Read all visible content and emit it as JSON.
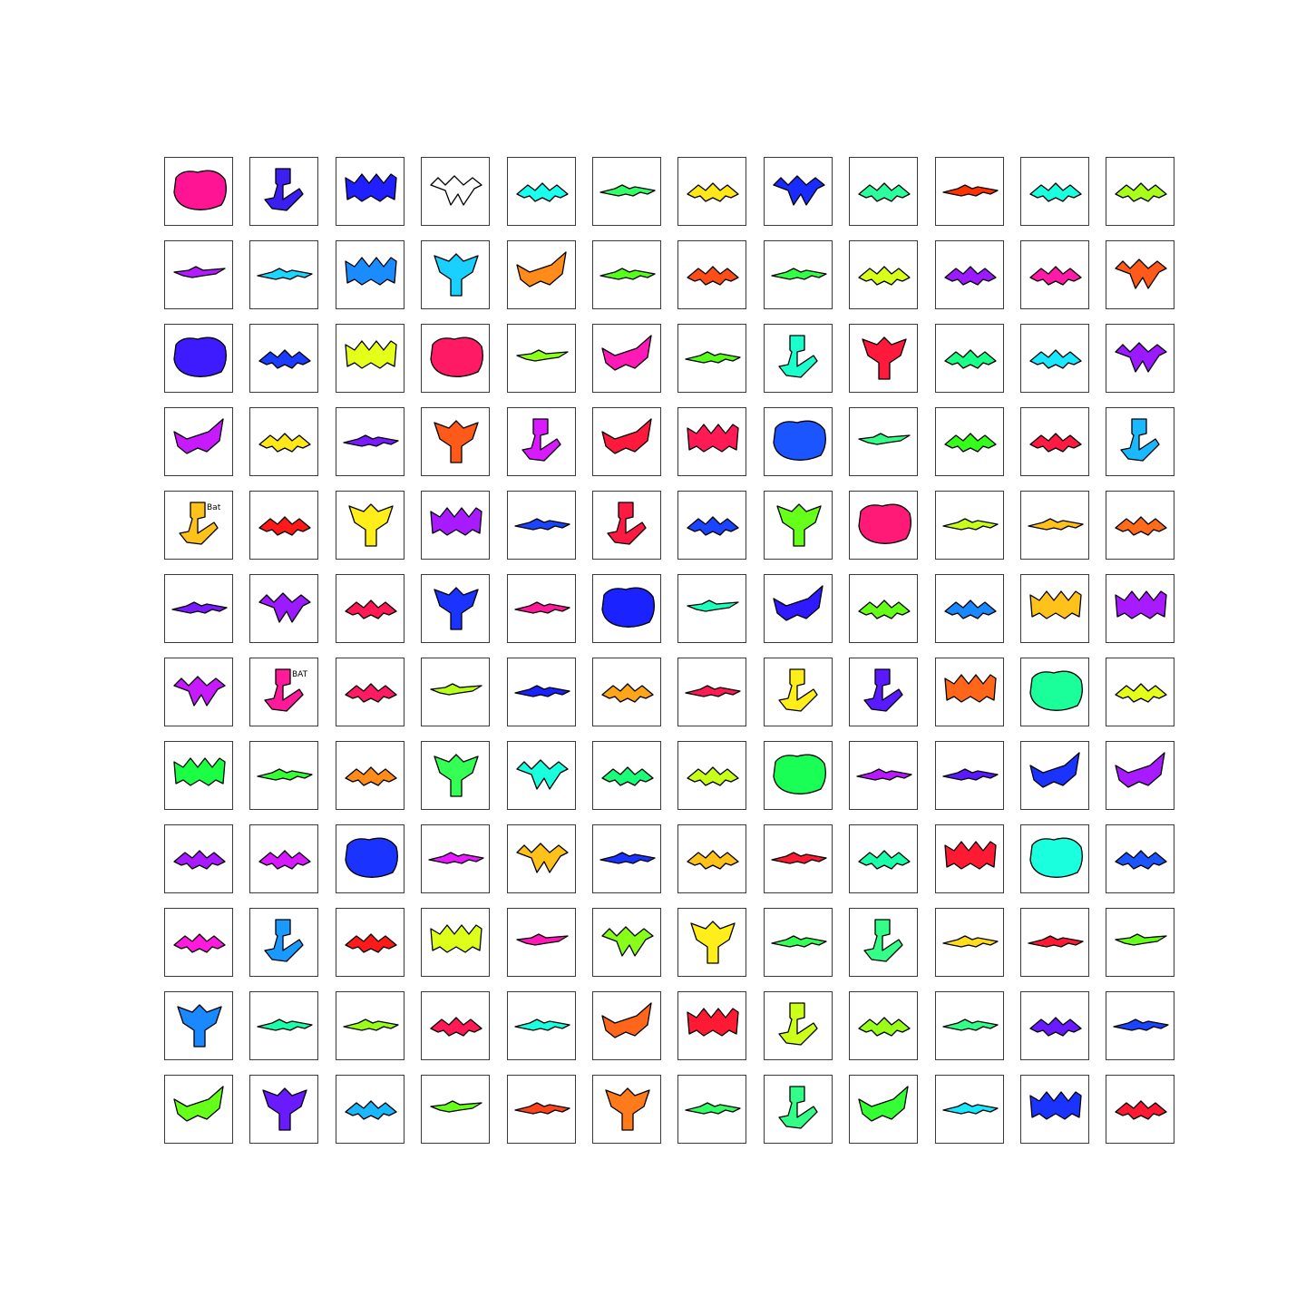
{
  "grid": {
    "rows": 12,
    "cols": 12,
    "cells": [
      {
        "color": "#ff1493",
        "shape": "blob"
      },
      {
        "color": "#3a1ff0",
        "shape": "figure"
      },
      {
        "color": "#1f1fff",
        "shape": "wide"
      },
      {
        "color": "#ffffff",
        "shape": "outline"
      },
      {
        "color": "#1affee",
        "shape": "spread"
      },
      {
        "color": "#33ff66",
        "shape": "long"
      },
      {
        "color": "#ffe81a",
        "shape": "spread"
      },
      {
        "color": "#1a2bff",
        "shape": "outline"
      },
      {
        "color": "#2bff9e",
        "shape": "spread"
      },
      {
        "color": "#ff3300",
        "shape": "long"
      },
      {
        "color": "#1affe0",
        "shape": "spread"
      },
      {
        "color": "#a8ff1a",
        "shape": "spread"
      },
      {
        "color": "#b31aff",
        "shape": "thin"
      },
      {
        "color": "#1ad8ff",
        "shape": "long"
      },
      {
        "color": "#1a8cff",
        "shape": "wide"
      },
      {
        "color": "#1ad0ff",
        "shape": "tall"
      },
      {
        "color": "#ff8c1a",
        "shape": "wing"
      },
      {
        "color": "#55ff1a",
        "shape": "long"
      },
      {
        "color": "#ff4d1a",
        "shape": "spread"
      },
      {
        "color": "#33ff44",
        "shape": "long"
      },
      {
        "color": "#d8ff1a",
        "shape": "spread"
      },
      {
        "color": "#9c1aff",
        "shape": "spread"
      },
      {
        "color": "#ff1aa8",
        "shape": "spread"
      },
      {
        "color": "#ff5a1a",
        "shape": "outline"
      },
      {
        "color": "#3d1aff",
        "shape": "blob"
      },
      {
        "color": "#1a3dff",
        "shape": "spread"
      },
      {
        "color": "#e6ff1a",
        "shape": "wide"
      },
      {
        "color": "#ff1a66",
        "shape": "blob"
      },
      {
        "color": "#8cff1a",
        "shape": "thin"
      },
      {
        "color": "#ff1ab8",
        "shape": "wing"
      },
      {
        "color": "#55ff1a",
        "shape": "long"
      },
      {
        "color": "#1affcc",
        "shape": "figure"
      },
      {
        "color": "#ff1a3d",
        "shape": "tall"
      },
      {
        "color": "#1aff88",
        "shape": "spread"
      },
      {
        "color": "#1ae8ff",
        "shape": "spread"
      },
      {
        "color": "#9c1aff",
        "shape": "outline"
      },
      {
        "color": "#c81aff",
        "shape": "wing"
      },
      {
        "color": "#ffe81a",
        "shape": "spread"
      },
      {
        "color": "#7a1aff",
        "shape": "long"
      },
      {
        "color": "#ff5a1a",
        "shape": "tall"
      },
      {
        "color": "#d81aff",
        "shape": "figure"
      },
      {
        "color": "#ff1a3d",
        "shape": "wing"
      },
      {
        "color": "#ff1a55",
        "shape": "wide"
      },
      {
        "color": "#1a55ff",
        "shape": "blob"
      },
      {
        "color": "#33ff88",
        "shape": "thin"
      },
      {
        "color": "#33ff1a",
        "shape": "spread"
      },
      {
        "color": "#ff1a44",
        "shape": "spread"
      },
      {
        "color": "#1ab8ff",
        "shape": "figure"
      },
      {
        "color": "#ffc21a",
        "shape": "figure"
      },
      {
        "color": "#ff1a1a",
        "shape": "spread"
      },
      {
        "color": "#ffee1a",
        "shape": "tall"
      },
      {
        "color": "#a81aff",
        "shape": "wide"
      },
      {
        "color": "#1a44ff",
        "shape": "long"
      },
      {
        "color": "#ff1a44",
        "shape": "figure"
      },
      {
        "color": "#1a44ff",
        "shape": "spread"
      },
      {
        "color": "#66ff1a",
        "shape": "tall"
      },
      {
        "color": "#ff1a77",
        "shape": "blob"
      },
      {
        "color": "#c8ff1a",
        "shape": "long"
      },
      {
        "color": "#ffc21a",
        "shape": "long"
      },
      {
        "color": "#ff6b1a",
        "shape": "spread"
      },
      {
        "color": "#7a1aff",
        "shape": "long"
      },
      {
        "color": "#9c1aff",
        "shape": "outline"
      },
      {
        "color": "#ff1a55",
        "shape": "spread"
      },
      {
        "color": "#1a33ff",
        "shape": "tall"
      },
      {
        "color": "#ff1a99",
        "shape": "long"
      },
      {
        "color": "#1a22ff",
        "shape": "blob"
      },
      {
        "color": "#1affbb",
        "shape": "thin"
      },
      {
        "color": "#2f1aff",
        "shape": "wing"
      },
      {
        "color": "#66ff1a",
        "shape": "spread"
      },
      {
        "color": "#1a88ff",
        "shape": "spread"
      },
      {
        "color": "#ffc21a",
        "shape": "wide"
      },
      {
        "color": "#a81aff",
        "shape": "wide"
      },
      {
        "color": "#c81aff",
        "shape": "outline"
      },
      {
        "color": "#ff1a99",
        "shape": "figure"
      },
      {
        "color": "#ff1a66",
        "shape": "spread"
      },
      {
        "color": "#b8ff1a",
        "shape": "thin"
      },
      {
        "color": "#1a22ff",
        "shape": "long"
      },
      {
        "color": "#ffa51a",
        "shape": "spread"
      },
      {
        "color": "#ff1a55",
        "shape": "long"
      },
      {
        "color": "#ffee1a",
        "shape": "figure"
      },
      {
        "color": "#5a1aff",
        "shape": "figure"
      },
      {
        "color": "#ff661a",
        "shape": "wide"
      },
      {
        "color": "#1aff99",
        "shape": "blob"
      },
      {
        "color": "#e6ff1a",
        "shape": "spread"
      },
      {
        "color": "#1aff44",
        "shape": "wide"
      },
      {
        "color": "#33ff33",
        "shape": "long"
      },
      {
        "color": "#ff8c1a",
        "shape": "spread"
      },
      {
        "color": "#33ff55",
        "shape": "tall"
      },
      {
        "color": "#1affdd",
        "shape": "outline"
      },
      {
        "color": "#1aff77",
        "shape": "spread"
      },
      {
        "color": "#c8ff1a",
        "shape": "spread"
      },
      {
        "color": "#1aff55",
        "shape": "blob"
      },
      {
        "color": "#b81aff",
        "shape": "long"
      },
      {
        "color": "#5a1aff",
        "shape": "long"
      },
      {
        "color": "#1a33ff",
        "shape": "wing"
      },
      {
        "color": "#a81aff",
        "shape": "wing"
      },
      {
        "color": "#a81aff",
        "shape": "spread"
      },
      {
        "color": "#d81aff",
        "shape": "spread"
      },
      {
        "color": "#1a33ff",
        "shape": "blob"
      },
      {
        "color": "#e81aff",
        "shape": "long"
      },
      {
        "color": "#ffc21a",
        "shape": "outline"
      },
      {
        "color": "#1a33ff",
        "shape": "long"
      },
      {
        "color": "#ffc21a",
        "shape": "spread"
      },
      {
        "color": "#ff1a33",
        "shape": "long"
      },
      {
        "color": "#1affaa",
        "shape": "spread"
      },
      {
        "color": "#ff1a33",
        "shape": "wide"
      },
      {
        "color": "#1affdd",
        "shape": "blob"
      },
      {
        "color": "#1a55ff",
        "shape": "spread"
      },
      {
        "color": "#ff1add",
        "shape": "spread"
      },
      {
        "color": "#1a99ff",
        "shape": "figure"
      },
      {
        "color": "#ff1a1a",
        "shape": "spread"
      },
      {
        "color": "#ddff1a",
        "shape": "wide"
      },
      {
        "color": "#ff1ab8",
        "shape": "thin"
      },
      {
        "color": "#88ff1a",
        "shape": "outline"
      },
      {
        "color": "#ffee1a",
        "shape": "tall"
      },
      {
        "color": "#33ff55",
        "shape": "long"
      },
      {
        "color": "#33ff88",
        "shape": "figure"
      },
      {
        "color": "#ffdd1a",
        "shape": "long"
      },
      {
        "color": "#ff1a33",
        "shape": "long"
      },
      {
        "color": "#66ff1a",
        "shape": "thin"
      },
      {
        "color": "#1a88ff",
        "shape": "tall"
      },
      {
        "color": "#1affaa",
        "shape": "long"
      },
      {
        "color": "#99ff1a",
        "shape": "long"
      },
      {
        "color": "#ff1a55",
        "shape": "spread"
      },
      {
        "color": "#1affdd",
        "shape": "long"
      },
      {
        "color": "#ff661a",
        "shape": "wing"
      },
      {
        "color": "#ff1a33",
        "shape": "wide"
      },
      {
        "color": "#ccff1a",
        "shape": "figure"
      },
      {
        "color": "#99ff1a",
        "shape": "spread"
      },
      {
        "color": "#33ff88",
        "shape": "long"
      },
      {
        "color": "#6a1aff",
        "shape": "spread"
      },
      {
        "color": "#1a44ff",
        "shape": "long"
      },
      {
        "color": "#66ff1a",
        "shape": "wing"
      },
      {
        "color": "#6a1aff",
        "shape": "tall"
      },
      {
        "color": "#1ab8ff",
        "shape": "spread"
      },
      {
        "color": "#66ff1a",
        "shape": "thin"
      },
      {
        "color": "#ff441a",
        "shape": "long"
      },
      {
        "color": "#ff7a1a",
        "shape": "tall"
      },
      {
        "color": "#33ff66",
        "shape": "long"
      },
      {
        "color": "#33ff88",
        "shape": "figure"
      },
      {
        "color": "#33ff33",
        "shape": "wing"
      },
      {
        "color": "#1ae8ff",
        "shape": "long"
      },
      {
        "color": "#1a33ff",
        "shape": "wide"
      },
      {
        "color": "#ff1a33",
        "shape": "spread"
      }
    ],
    "text_labels": [
      {
        "cell": 48,
        "text": "Bat"
      },
      {
        "cell": 73,
        "text": "BAT"
      }
    ]
  }
}
